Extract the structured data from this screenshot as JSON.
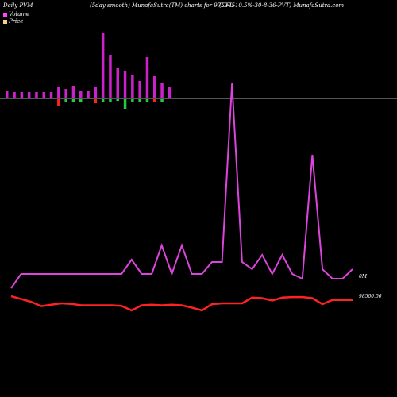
{
  "header": {
    "left": "Daily PVM",
    "middle": "(5day smooth) MunafaSutra(TM) charts for 975975",
    "right": "(CFL-10.5%-30-8-36-PVT) MunafaSutra.com"
  },
  "legend": [
    {
      "label": "Volume",
      "color": "#ff44ff"
    },
    {
      "label": "Price",
      "color": "#ffcc88"
    }
  ],
  "colors": {
    "background": "#000000",
    "volume_up": "#cc22cc",
    "volume_down_red": "#ff2222",
    "volume_down_green": "#22cc44",
    "volume_line": "#dd44dd",
    "price_line": "#ff2222",
    "zero_line": "#aaaaaa"
  },
  "chart_data": {
    "type": "line",
    "volume_label": "0M",
    "price_label": "98500.00",
    "bars": {
      "up": [
        10,
        8,
        8,
        8,
        8,
        8,
        8,
        14,
        12,
        16,
        10,
        10,
        14,
        82,
        55,
        38,
        34,
        30,
        22,
        52,
        28,
        20,
        15
      ],
      "down": [
        0,
        0,
        0,
        0,
        0,
        0,
        0,
        -8,
        -3,
        -3,
        -3,
        0,
        -5,
        -3,
        -4,
        -2,
        -12,
        -4,
        -4,
        -3,
        -4,
        -3,
        0
      ],
      "down_color": [
        "r",
        "r",
        "r",
        "r",
        "r",
        "r",
        "r",
        "r",
        "g",
        "g",
        "g",
        "r",
        "r",
        "g",
        "g",
        "g",
        "g",
        "g",
        "g",
        "g",
        "r",
        "g",
        "r"
      ]
    },
    "volume": [
      96,
      90,
      90,
      90,
      90,
      90,
      90,
      90,
      90,
      90,
      90,
      90,
      84,
      90,
      90,
      78,
      90,
      78,
      90,
      90,
      85,
      85,
      10,
      85,
      88,
      82,
      90,
      82,
      90,
      92,
      40,
      88,
      92,
      92,
      88
    ],
    "price": [
      98,
      99,
      100,
      101.5,
      101,
      100.5,
      100.7,
      101.2,
      101.2,
      101.2,
      101.2,
      101.4,
      103,
      101.2,
      101,
      101.2,
      101,
      101.2,
      102,
      103,
      100.8,
      100.5,
      100.5,
      100.5,
      98.5,
      98.7,
      99.5,
      98.5,
      98.3,
      98.3,
      98.7,
      100.8,
      99.3,
      99.3,
      99.3
    ]
  }
}
